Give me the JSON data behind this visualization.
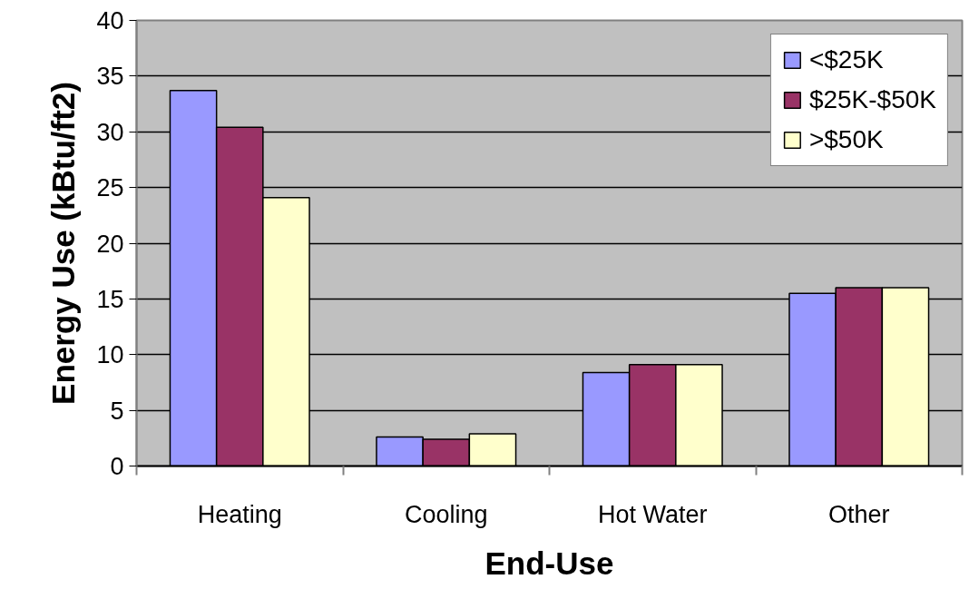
{
  "chart_data": {
    "type": "bar",
    "xlabel": "End-Use",
    "ylabel": "Energy Use (kBtu/ft2)",
    "categories": [
      "Heating",
      "Cooling",
      "Hot Water",
      "Other"
    ],
    "series": [
      {
        "name": "<$25K",
        "color": "#9999ff",
        "values": [
          33.7,
          2.6,
          8.4,
          15.5
        ]
      },
      {
        "name": "$25K-$50K",
        "color": "#993366",
        "values": [
          30.4,
          2.4,
          9.1,
          16.0
        ]
      },
      {
        "name": ">$50K",
        "color": "#ffffcc",
        "values": [
          24.1,
          2.9,
          9.1,
          16.0
        ]
      }
    ],
    "ylim": [
      0,
      40
    ],
    "yticks": [
      0,
      5,
      10,
      15,
      20,
      25,
      30,
      35,
      40
    ],
    "grid": "y",
    "legend": "top right"
  }
}
